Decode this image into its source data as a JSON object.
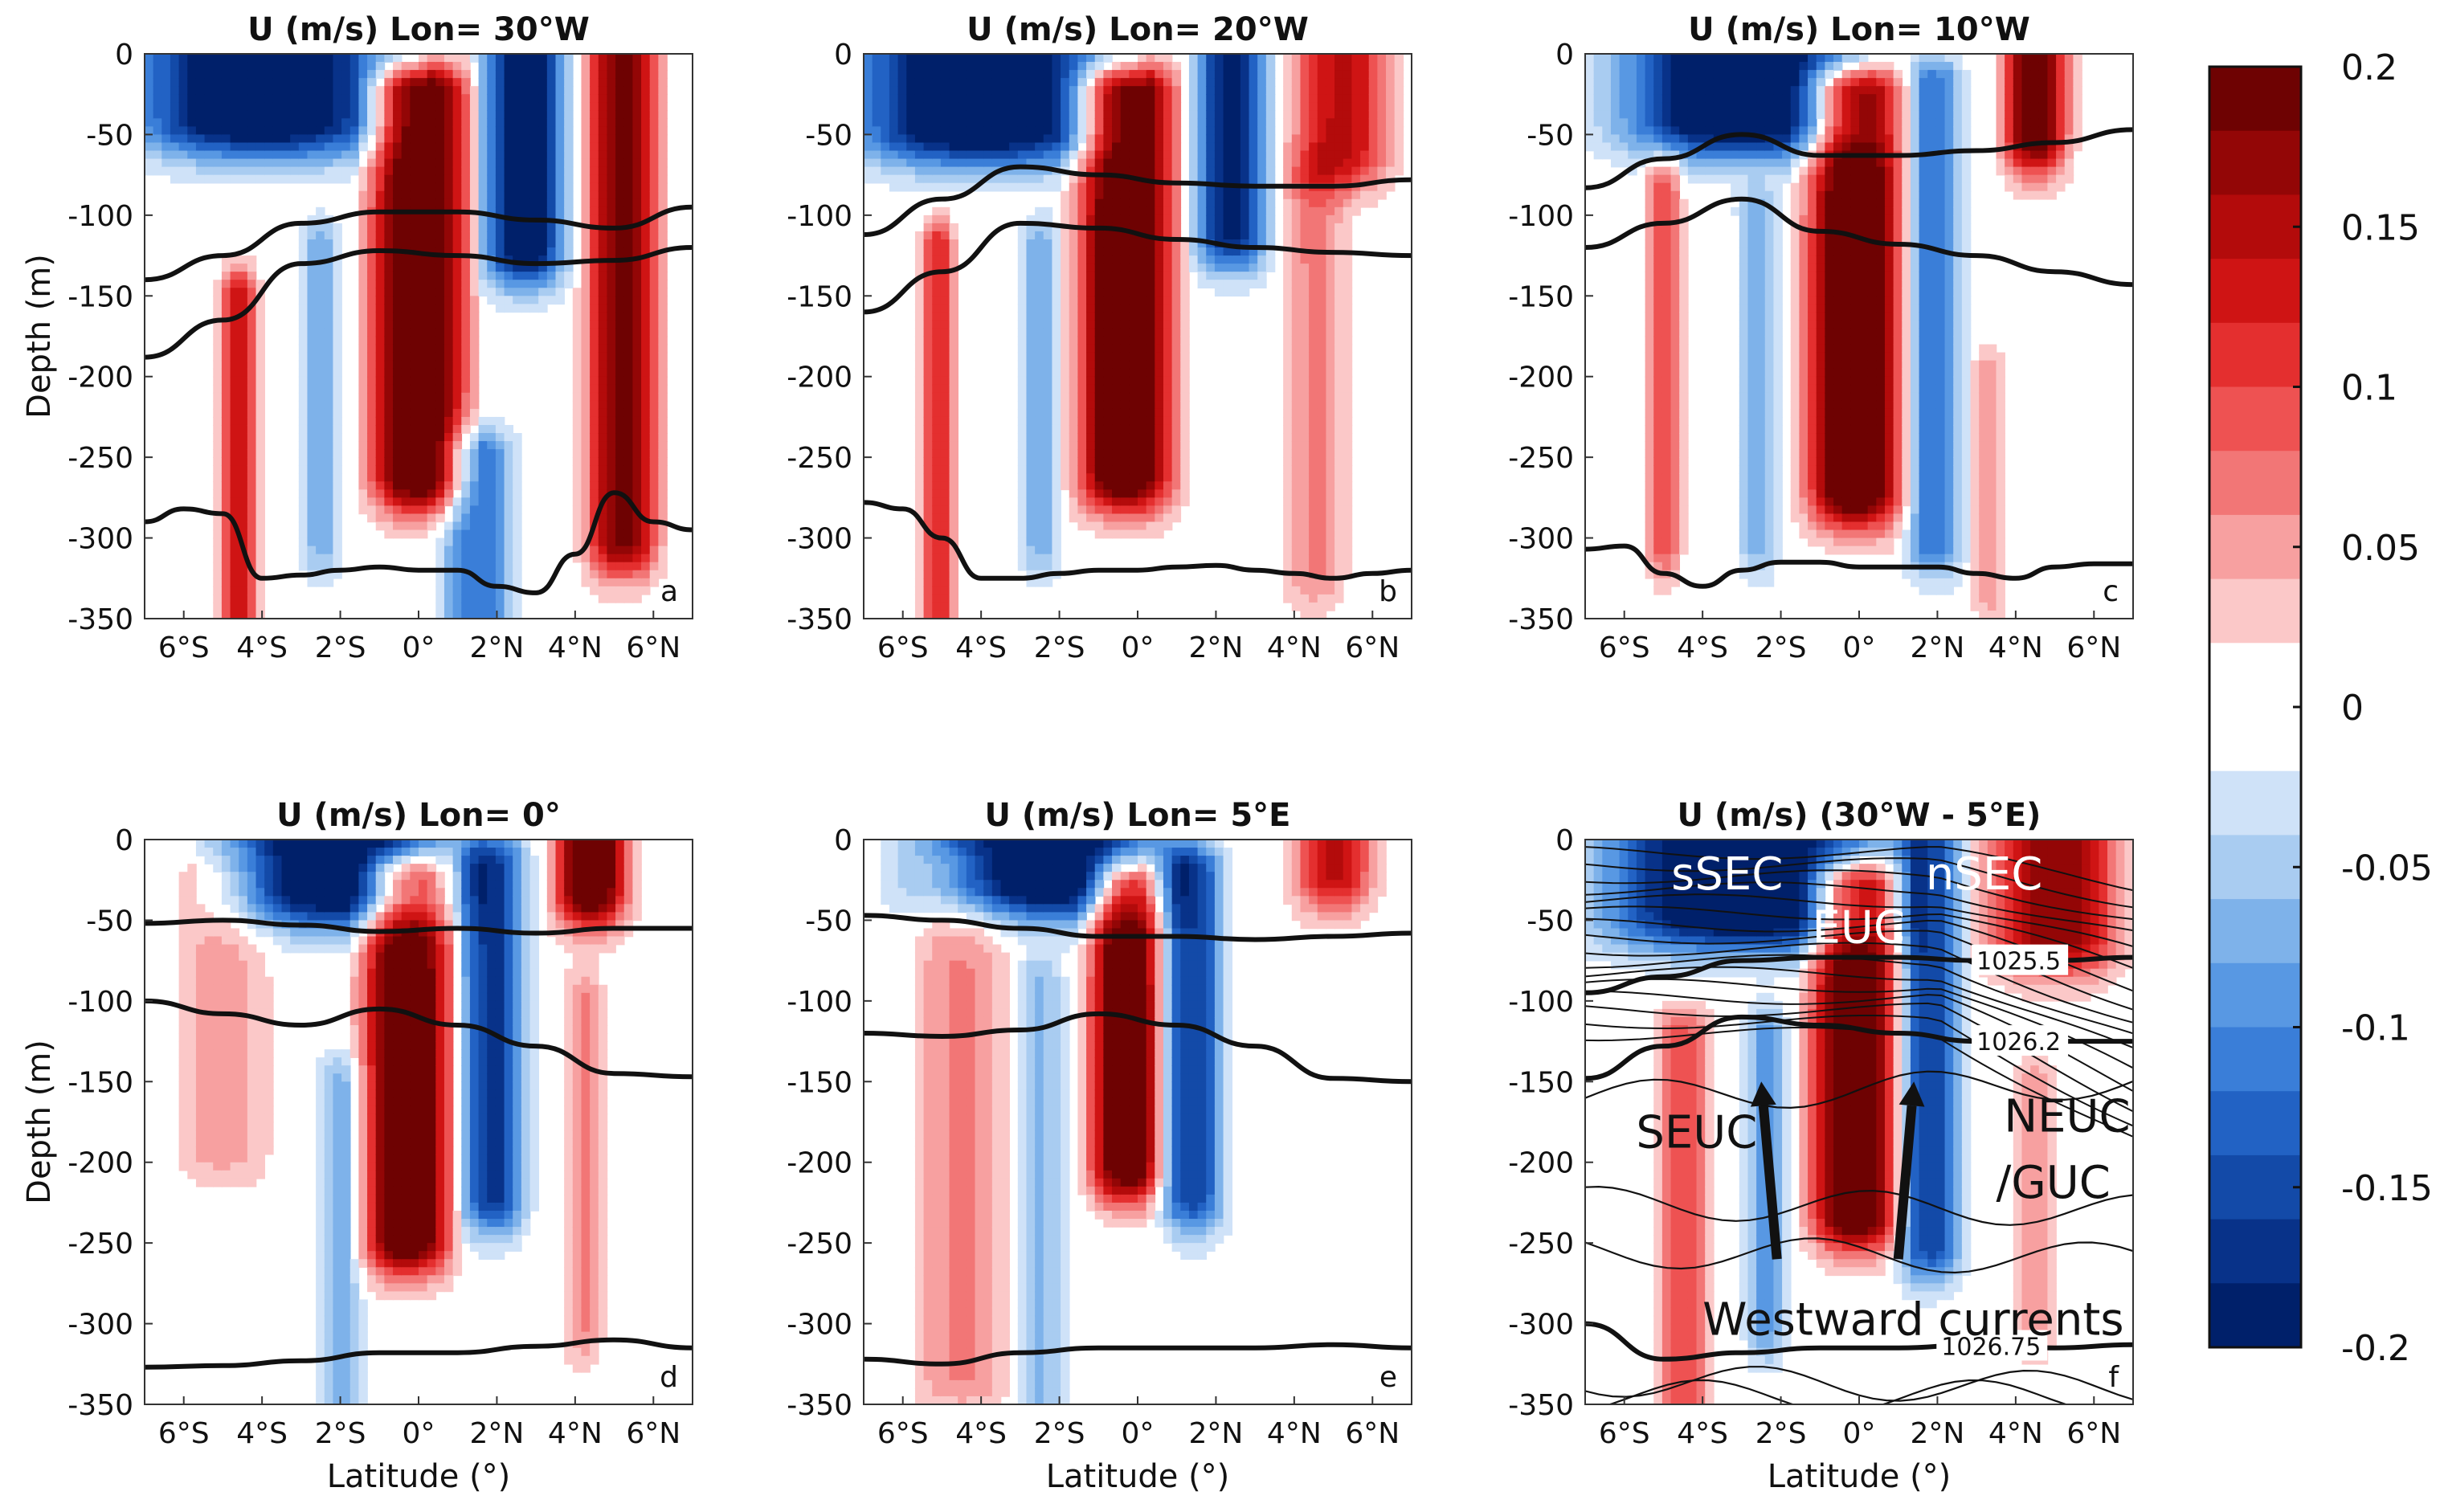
{
  "chart_data": [
    {
      "panel": "a",
      "type": "heatmap",
      "title": "U (m/s) Lon= 30°W",
      "letter": "a",
      "xlabel": "",
      "ylabel": "Depth (m)",
      "xticks": [
        "6°S",
        "4°S",
        "2°S",
        "0°",
        "2°N",
        "4°N",
        "6°N"
      ],
      "yticks": [
        "0",
        "-50",
        "-100",
        "-150",
        "-200",
        "-250",
        "-300",
        "-350"
      ],
      "xlim": [
        -7,
        7
      ],
      "ylim": [
        -350,
        0
      ],
      "cores": [
        {
          "lat": 0,
          "half_width": 1.2,
          "top": -25,
          "bottom": -260,
          "u": 0.2
        },
        {
          "lat": -4.6,
          "half_width": 0.45,
          "top": -150,
          "bottom": -350,
          "u": 0.12
        },
        {
          "lat": 5.2,
          "half_width": 0.9,
          "top": 0,
          "bottom": -300,
          "u": 0.16
        },
        {
          "lat": -4,
          "half_width": 3.2,
          "top": 0,
          "bottom": -40,
          "u": -0.2
        },
        {
          "lat": 2.7,
          "half_width": 1.0,
          "top": 0,
          "bottom": -120,
          "u": -0.18
        },
        {
          "lat": 1.5,
          "half_width": 0.9,
          "top": -250,
          "bottom": -350,
          "u": -0.1
        },
        {
          "lat": -2.5,
          "half_width": 0.5,
          "top": -120,
          "bottom": -300,
          "u": -0.06
        }
      ],
      "isopycnals": [
        {
          "lat": [
            -7,
            -5,
            -3,
            -1,
            1,
            3,
            5,
            7
          ],
          "depth": [
            -140,
            -125,
            -105,
            -98,
            -98,
            -103,
            -108,
            -95
          ]
        },
        {
          "lat": [
            -7,
            -5,
            -3,
            -1,
            1,
            3,
            5,
            7
          ],
          "depth": [
            -188,
            -165,
            -130,
            -122,
            -125,
            -130,
            -128,
            -120
          ]
        },
        {
          "lat": [
            -7,
            -6,
            -5,
            -4,
            -3,
            -2,
            -1,
            0,
            1,
            2,
            3,
            4,
            5,
            6,
            7
          ],
          "depth": [
            -290,
            -282,
            -285,
            -325,
            -323,
            -320,
            -318,
            -320,
            -320,
            -330,
            -334,
            -310,
            -272,
            -290,
            -295
          ]
        }
      ]
    },
    {
      "panel": "b",
      "type": "heatmap",
      "title": "U (m/s) Lon= 20°W",
      "letter": "b",
      "xlabel": "",
      "ylabel": "",
      "xticks": [
        "6°S",
        "4°S",
        "2°S",
        "0°",
        "2°N",
        "4°N",
        "6°N"
      ],
      "yticks": [
        "0",
        "-50",
        "-100",
        "-150",
        "-200",
        "-250",
        "-300",
        "-350"
      ],
      "xlim": [
        -7,
        7
      ],
      "ylim": [
        -350,
        0
      ],
      "cores": [
        {
          "lat": -0.3,
          "half_width": 1.2,
          "top": -25,
          "bottom": -260,
          "u": 0.2
        },
        {
          "lat": -5.1,
          "half_width": 0.4,
          "top": -120,
          "bottom": -350,
          "u": 0.1
        },
        {
          "lat": 5.2,
          "half_width": 1.2,
          "top": 0,
          "bottom": -60,
          "u": 0.12
        },
        {
          "lat": 4.5,
          "half_width": 0.8,
          "top": -80,
          "bottom": -320,
          "u": 0.05
        },
        {
          "lat": -4,
          "half_width": 3.2,
          "top": 0,
          "bottom": -45,
          "u": -0.2
        },
        {
          "lat": 2.4,
          "half_width": 0.9,
          "top": 0,
          "bottom": -110,
          "u": -0.16
        },
        {
          "lat": -2.5,
          "half_width": 0.5,
          "top": -120,
          "bottom": -300,
          "u": -0.06
        }
      ],
      "isopycnals": [
        {
          "lat": [
            -7,
            -5,
            -3,
            -1,
            1,
            3,
            5,
            7
          ],
          "depth": [
            -112,
            -90,
            -70,
            -75,
            -80,
            -82,
            -82,
            -78
          ]
        },
        {
          "lat": [
            -7,
            -5,
            -3,
            -1,
            1,
            3,
            5,
            7
          ],
          "depth": [
            -160,
            -135,
            -105,
            -108,
            -115,
            -120,
            -123,
            -125
          ]
        },
        {
          "lat": [
            -7,
            -6,
            -5,
            -4,
            -3,
            -2,
            -1,
            0,
            1,
            2,
            3,
            4,
            5,
            6,
            7
          ],
          "depth": [
            -278,
            -282,
            -300,
            -325,
            -325,
            -322,
            -320,
            -320,
            -318,
            -317,
            -320,
            -322,
            -325,
            -322,
            -320
          ]
        }
      ]
    },
    {
      "panel": "c",
      "type": "heatmap",
      "title": "U (m/s) Lon= 10°W",
      "letter": "c",
      "xlabel": "",
      "ylabel": "",
      "xticks": [
        "6°S",
        "4°S",
        "2°S",
        "0°",
        "2°N",
        "4°N",
        "6°N"
      ],
      "yticks": [
        "0",
        "-50",
        "-100",
        "-150",
        "-200",
        "-250",
        "-300",
        "-350"
      ],
      "xlim": [
        -7,
        7
      ],
      "ylim": [
        -350,
        0
      ],
      "cores": [
        {
          "lat": -0.1,
          "half_width": 1.2,
          "top": -25,
          "bottom": -270,
          "u": 0.2
        },
        {
          "lat": -5.0,
          "half_width": 0.45,
          "top": -80,
          "bottom": -300,
          "u": 0.08
        },
        {
          "lat": 4.5,
          "half_width": 0.8,
          "top": 0,
          "bottom": -50,
          "u": 0.18
        },
        {
          "lat": 3.3,
          "half_width": 0.4,
          "top": -200,
          "bottom": -330,
          "u": 0.04
        },
        {
          "lat": -3,
          "half_width": 3,
          "top": 0,
          "bottom": -40,
          "u": -0.2
        },
        {
          "lat": 1.9,
          "half_width": 0.7,
          "top": -20,
          "bottom": -300,
          "u": -0.1
        },
        {
          "lat": -2.6,
          "half_width": 0.5,
          "top": -100,
          "bottom": -300,
          "u": -0.06
        }
      ],
      "isopycnals": [
        {
          "lat": [
            -7,
            -5,
            -3,
            -1,
            1,
            3,
            5,
            7
          ],
          "depth": [
            -83,
            -65,
            -50,
            -63,
            -63,
            -60,
            -55,
            -47
          ]
        },
        {
          "lat": [
            -7,
            -5,
            -3,
            -1,
            1,
            3,
            5,
            7
          ],
          "depth": [
            -120,
            -105,
            -90,
            -110,
            -118,
            -125,
            -135,
            -143
          ]
        },
        {
          "lat": [
            -7,
            -6,
            -5,
            -4,
            -3,
            -2,
            -1,
            0,
            1,
            2,
            3,
            4,
            5,
            6,
            7
          ],
          "depth": [
            -307,
            -305,
            -322,
            -330,
            -320,
            -315,
            -315,
            -318,
            -318,
            -318,
            -322,
            -325,
            -318,
            -316,
            -316
          ]
        }
      ]
    },
    {
      "panel": "d",
      "type": "heatmap",
      "title": "U (m/s) Lon= 0°",
      "letter": "d",
      "xlabel": "Latitude (°)",
      "ylabel": "Depth (m)",
      "xticks": [
        "6°S",
        "4°S",
        "2°S",
        "0°",
        "2°N",
        "4°N",
        "6°N"
      ],
      "yticks": [
        "0",
        "-50",
        "-100",
        "-150",
        "-200",
        "-250",
        "-300",
        "-350"
      ],
      "xlim": [
        -7,
        7
      ],
      "ylim": [
        -350,
        0
      ],
      "cores": [
        {
          "lat": -0.3,
          "half_width": 1.1,
          "top": -25,
          "bottom": -245,
          "u": 0.2
        },
        {
          "lat": -5.0,
          "half_width": 1.2,
          "top": -30,
          "bottom": -190,
          "u": 0.04
        },
        {
          "lat": 4.4,
          "half_width": 0.9,
          "top": 0,
          "bottom": -30,
          "u": 0.2
        },
        {
          "lat": 4.2,
          "half_width": 0.5,
          "top": -100,
          "bottom": -300,
          "u": 0.05
        },
        {
          "lat": -2,
          "half_width": 2.8,
          "top": 0,
          "bottom": -30,
          "u": -0.2
        },
        {
          "lat": 1.9,
          "half_width": 0.8,
          "top": -15,
          "bottom": -220,
          "u": -0.14
        },
        {
          "lat": -2,
          "half_width": 0.6,
          "top": -150,
          "bottom": -350,
          "u": -0.05
        }
      ],
      "isopycnals": [
        {
          "lat": [
            -7,
            -5,
            -3,
            -1,
            1,
            3,
            5,
            7
          ],
          "depth": [
            -52,
            -50,
            -53,
            -57,
            -55,
            -58,
            -55,
            -55
          ]
        },
        {
          "lat": [
            -7,
            -5,
            -3,
            -1,
            1,
            3,
            5,
            7
          ],
          "depth": [
            -100,
            -108,
            -115,
            -105,
            -115,
            -128,
            -145,
            -147
          ]
        },
        {
          "lat": [
            -7,
            -5,
            -3,
            -1,
            1,
            3,
            5,
            7
          ],
          "depth": [
            -327,
            -326,
            -323,
            -318,
            -318,
            -314,
            -310,
            -315
          ]
        }
      ]
    },
    {
      "panel": "e",
      "type": "heatmap",
      "title": "U (m/s) Lon= 5°E",
      "letter": "e",
      "xlabel": "Latitude (°)",
      "ylabel": "",
      "xticks": [
        "6°S",
        "4°S",
        "2°S",
        "0°",
        "2°N",
        "4°N",
        "6°N"
      ],
      "yticks": [
        "0",
        "-50",
        "-100",
        "-150",
        "-200",
        "-250",
        "-300",
        "-350"
      ],
      "xlim": [
        -7,
        7
      ],
      "ylim": [
        -350,
        0
      ],
      "cores": [
        {
          "lat": -0.3,
          "half_width": 0.9,
          "top": -30,
          "bottom": -200,
          "u": 0.2
        },
        {
          "lat": -4.5,
          "half_width": 1.2,
          "top": -20,
          "bottom": -330,
          "u": 0.05
        },
        {
          "lat": 5.0,
          "half_width": 1.0,
          "top": 0,
          "bottom": -20,
          "u": 0.12
        },
        {
          "lat": -2.5,
          "half_width": 3,
          "top": 0,
          "bottom": -25,
          "u": -0.2
        },
        {
          "lat": 1.4,
          "half_width": 0.8,
          "top": -20,
          "bottom": -220,
          "u": -0.13
        },
        {
          "lat": -2.5,
          "half_width": 0.6,
          "top": -90,
          "bottom": -350,
          "u": -0.05
        }
      ],
      "isopycnals": [
        {
          "lat": [
            -7,
            -5,
            -3,
            -1,
            1,
            3,
            5,
            7
          ],
          "depth": [
            -47,
            -50,
            -55,
            -60,
            -60,
            -62,
            -60,
            -58
          ]
        },
        {
          "lat": [
            -7,
            -5,
            -3,
            -1,
            1,
            3,
            5,
            7
          ],
          "depth": [
            -120,
            -122,
            -118,
            -108,
            -115,
            -128,
            -148,
            -150
          ]
        },
        {
          "lat": [
            -7,
            -5,
            -3,
            -1,
            1,
            3,
            5,
            7
          ],
          "depth": [
            -322,
            -325,
            -318,
            -315,
            -315,
            -315,
            -313,
            -315
          ]
        }
      ]
    },
    {
      "panel": "f",
      "type": "heatmap",
      "title": "U (m/s) (30°W - 5°E)",
      "letter": "f",
      "xlabel": "Latitude (°)",
      "ylabel": "",
      "xticks": [
        "6°S",
        "4°S",
        "2°S",
        "0°",
        "2°N",
        "4°N",
        "6°N"
      ],
      "yticks": [
        "0",
        "-50",
        "-100",
        "-150",
        "-200",
        "-250",
        "-300",
        "-350"
      ],
      "xlim": [
        -7,
        7
      ],
      "ylim": [
        -350,
        0
      ],
      "cores": [
        {
          "lat": -0.1,
          "half_width": 1.1,
          "top": -30,
          "bottom": -230,
          "u": 0.2
        },
        {
          "lat": -4.5,
          "half_width": 0.7,
          "top": -120,
          "bottom": -350,
          "u": 0.07
        },
        {
          "lat": 5,
          "half_width": 1.6,
          "top": 0,
          "bottom": -60,
          "u": 0.15
        },
        {
          "lat": 4.5,
          "half_width": 0.5,
          "top": -150,
          "bottom": -300,
          "u": 0.04
        },
        {
          "lat": -3,
          "half_width": 3.5,
          "top": 0,
          "bottom": -45,
          "u": -0.2
        },
        {
          "lat": 1.8,
          "half_width": 0.8,
          "top": 0,
          "bottom": -250,
          "u": -0.13
        },
        {
          "lat": -2.4,
          "half_width": 0.5,
          "top": -120,
          "bottom": -300,
          "u": -0.07
        }
      ],
      "isopycnals": [
        {
          "lat": [
            -7,
            -5,
            -3,
            -1,
            1,
            3,
            5,
            7
          ],
          "depth": [
            -95,
            -85,
            -75,
            -73,
            -73,
            -75,
            -75,
            -73
          ],
          "label": "1025.5",
          "label_lat": 3
        },
        {
          "lat": [
            -7,
            -5,
            -3,
            -1,
            1,
            3,
            5,
            7
          ],
          "depth": [
            -148,
            -128,
            -110,
            -115,
            -120,
            -125,
            -125,
            -125
          ],
          "label": "1026.2",
          "label_lat": 3
        },
        {
          "lat": [
            -7,
            -5,
            -3,
            -1,
            1,
            3,
            5,
            7
          ],
          "depth": [
            -300,
            -322,
            -318,
            -315,
            -315,
            -313,
            -315,
            -313
          ],
          "label": "1026.75",
          "label_lat": 2.1
        }
      ],
      "annotations": [
        {
          "text": "sSEC",
          "lat": -4.8,
          "depth": -22
        },
        {
          "text": "nSEC",
          "lat": 1.7,
          "depth": -22
        },
        {
          "text": "EUC",
          "lat": -1.2,
          "depth": -55
        },
        {
          "text": "SEUC",
          "lat": -5.7,
          "depth": -182
        },
        {
          "text": "NEUC",
          "lat": 3.7,
          "depth": -172
        },
        {
          "text": "/GUC",
          "lat": 3.5,
          "depth": -213
        },
        {
          "text": "Westward currents",
          "lat": -4,
          "depth": -298
        }
      ],
      "arrows": [
        {
          "from_lat": -2.1,
          "from_depth": -260,
          "to_lat": -2.5,
          "to_depth": -150
        },
        {
          "from_lat": 1.0,
          "from_depth": -260,
          "to_lat": 1.4,
          "to_depth": -150
        }
      ]
    }
  ],
  "colorbar": {
    "ticks": [
      "0.2",
      "0.15",
      "0.1",
      "0.05",
      "0",
      "-0.05",
      "-0.1",
      "-0.15",
      "-0.2"
    ],
    "vmin": -0.2,
    "vmax": 0.2,
    "levels": 20
  }
}
